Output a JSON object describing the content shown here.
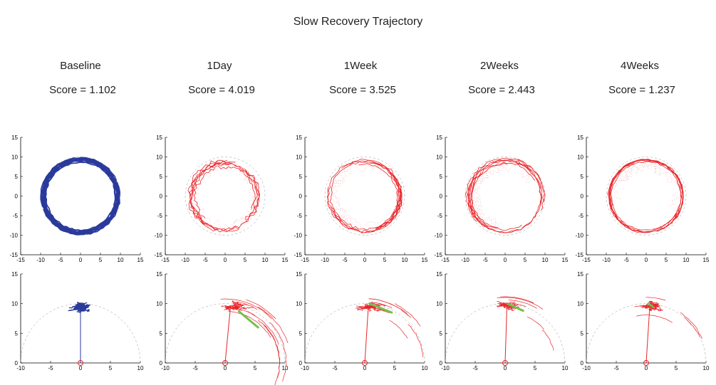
{
  "title": "Slow Recovery Trajectory",
  "chart_data": {
    "type": "line",
    "title": "Slow Recovery Trajectory",
    "colors": {
      "baseline": "#2a3a9c",
      "post": "#e8262b",
      "vector": "#73c04a",
      "guide": "#999999"
    },
    "conditions": [
      {
        "label": "Baseline",
        "score": "Score = 1.102",
        "score_value": 1.102,
        "color": "baseline",
        "top_radius": 9.3,
        "top_jitter": 0.9,
        "top_trials": 14,
        "bottom_center": [
          0,
          9.4
        ],
        "bottom_spread": 2.0,
        "bottom_vector": null
      },
      {
        "label": "1Day",
        "score": "Score = 4.019",
        "score_value": 4.019,
        "color": "post",
        "top_radius": 8.2,
        "top_jitter": 2.2,
        "top_trials": 10,
        "bottom_center": [
          1.5,
          9.5
        ],
        "bottom_spread": 4.5,
        "bottom_vector": [
          [
            2.3,
            8.7
          ],
          [
            5.5,
            6.0
          ]
        ]
      },
      {
        "label": "1Week",
        "score": "Score = 3.525",
        "score_value": 3.525,
        "color": "post",
        "top_radius": 8.6,
        "top_jitter": 1.4,
        "top_trials": 12,
        "bottom_center": [
          1.0,
          9.5
        ],
        "bottom_spread": 3.0,
        "bottom_vector": [
          [
            0.8,
            10.0
          ],
          [
            4.5,
            8.5
          ]
        ]
      },
      {
        "label": "2Weeks",
        "score": "Score = 2.443",
        "score_value": 2.443,
        "color": "post",
        "top_radius": 9.0,
        "top_jitter": 1.1,
        "top_trials": 12,
        "bottom_center": [
          0.5,
          9.6
        ],
        "bottom_spread": 2.6,
        "bottom_vector": [
          [
            0.6,
            9.9
          ],
          [
            3.0,
            8.8
          ]
        ]
      },
      {
        "label": "4Weeks",
        "score": "Score = 1.237",
        "score_value": 1.237,
        "color": "post",
        "top_radius": 9.0,
        "top_jitter": 0.9,
        "top_trials": 12,
        "bottom_center": [
          1.0,
          9.6
        ],
        "bottom_spread": 2.2,
        "bottom_vector": [
          [
            0.4,
            10.0
          ],
          [
            1.2,
            9.4
          ]
        ]
      }
    ],
    "top_axes": {
      "xlim": [
        -15,
        15
      ],
      "ylim": [
        -15,
        15
      ],
      "xticks": [
        -15,
        -10,
        -5,
        0,
        5,
        10,
        15
      ],
      "yticks": [
        -15,
        -10,
        -5,
        0,
        5,
        10,
        15
      ],
      "reference_circle_radius": 10
    },
    "bottom_axes": {
      "xlim": [
        -10,
        10
      ],
      "ylim": [
        0,
        15
      ],
      "xticks": [
        -10,
        -5,
        0,
        5,
        10
      ],
      "yticks": [
        0,
        5,
        10,
        15
      ],
      "reference_arc_radius": 10,
      "origin_marker": [
        0,
        0
      ]
    }
  }
}
